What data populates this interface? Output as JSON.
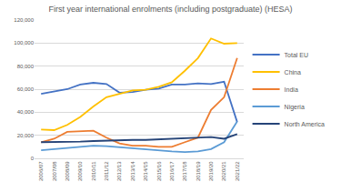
{
  "chart_data": {
    "type": "line",
    "title": "First year international enrolments (including postgraduate) (HESA)",
    "categories": [
      "2006/07",
      "2007/08",
      "2008/09",
      "2009/10",
      "2010/11",
      "2011/12",
      "2012/13",
      "2013/14",
      "2014/15",
      "2015/16",
      "2016/17",
      "2017/18",
      "2018/19",
      "2019/20",
      "2020/21",
      "2021/22"
    ],
    "series": [
      {
        "name": "Total EU",
        "color": "#4472c4",
        "values": [
          56000,
          58000,
          60000,
          64000,
          65500,
          64500,
          57000,
          57500,
          59500,
          60500,
          64000,
          64000,
          65000,
          64500,
          66500,
          31500
        ]
      },
      {
        "name": "China",
        "color": "#ffc000",
        "values": [
          25000,
          24500,
          29000,
          36000,
          45000,
          53000,
          56000,
          59000,
          59500,
          62000,
          66000,
          76000,
          87000,
          104000,
          99500,
          100000
        ]
      },
      {
        "name": "India",
        "color": "#ed7d31",
        "values": [
          14000,
          17000,
          23000,
          23500,
          24000,
          18000,
          13000,
          11000,
          11000,
          10000,
          10000,
          14000,
          18000,
          42000,
          53000,
          87000
        ]
      },
      {
        "name": "Nigeria",
        "color": "#5b9bd5",
        "values": [
          7000,
          8000,
          9500,
          10500,
          11000,
          10500,
          9500,
          9000,
          8000,
          7000,
          6000,
          5500,
          6000,
          8000,
          14000,
          32000
        ]
      },
      {
        "name": "North America",
        "color": "#264478",
        "values": [
          14000,
          14000,
          14000,
          14500,
          15000,
          15500,
          15500,
          16000,
          16000,
          16500,
          17000,
          18000,
          18500,
          18500,
          17000,
          21000
        ]
      }
    ],
    "ylim": [
      0,
      120000
    ],
    "yticks": [
      0,
      {
        "value": 20000,
        "label": "20,000"
      },
      {
        "value": 40000,
        "label": "40,000"
      },
      {
        "value": 60000,
        "label": "60,000"
      },
      {
        "value": 80000,
        "label": "80,000"
      },
      {
        "value": 100000,
        "label": "100,000"
      },
      {
        "value": 120000,
        "label": "120,000"
      }
    ],
    "grid": true,
    "legend": "right"
  }
}
